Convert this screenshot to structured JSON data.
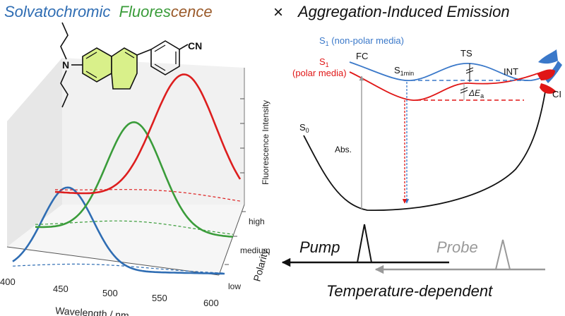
{
  "title": {
    "part1": "Solvatochromic",
    "part2_f": "F",
    "part2_rest": "luores",
    "part2_tail": "cence",
    "times": "×",
    "part3": "Aggregation-Induced Emission",
    "colors": {
      "blue": "#2f6db3",
      "green": "#3a9c3a",
      "brown": "#8a5a2b",
      "black": "#111111"
    }
  },
  "molecule": {
    "amine": "N",
    "nitrile": "CN",
    "ring_fill": "#d9f08a"
  },
  "plot3d": {
    "x_axis_title": "Wavelength / nm",
    "x_ticks": [
      "400",
      "450",
      "500",
      "550",
      "600"
    ],
    "z_axis_title": "Polarity",
    "z_ticks": [
      "high",
      "medium",
      "low"
    ],
    "y_axis_title": "Fluorescence Intensity"
  },
  "chart_data": {
    "type": "line",
    "title": "Solvatochromic Fluorescence",
    "xlabel": "Wavelength / nm",
    "ylabel": "Fluorescence Intensity",
    "zlabel": "Polarity",
    "xlim": [
      400,
      600
    ],
    "z_categories": [
      "low",
      "medium",
      "high"
    ],
    "series": [
      {
        "name": "low",
        "color": "#2f6db3",
        "peak_nm": 452,
        "width_nm": 24,
        "peak_rel": 0.62,
        "style": "solid"
      },
      {
        "name": "medium",
        "color": "#3a9c3a",
        "peak_nm": 500,
        "width_nm": 28,
        "peak_rel": 0.82,
        "style": "solid"
      },
      {
        "name": "high",
        "color": "#dd1e1e",
        "peak_nm": 540,
        "width_nm": 34,
        "peak_rel": 0.95,
        "style": "solid"
      },
      {
        "name": "low (aggregate)",
        "color": "#2f6db3",
        "peak_nm": 470,
        "width_nm": 60,
        "peak_rel": 0.05,
        "style": "dashed"
      },
      {
        "name": "medium (aggregate)",
        "color": "#3a9c3a",
        "peak_nm": 500,
        "width_nm": 60,
        "peak_rel": 0.08,
        "style": "dashed"
      },
      {
        "name": "high (aggregate)",
        "color": "#dd1e1e",
        "peak_nm": 520,
        "width_nm": 70,
        "peak_rel": 0.07,
        "style": "dashed"
      }
    ]
  },
  "energy": {
    "s1_nonpolar_label": "S",
    "s1_nonpolar_sub": "1",
    "s1_nonpolar_rest": " (non-polar media)",
    "s1_polar_label": "S",
    "s1_polar_sub": "1",
    "s1_polar_rest": "(polar media)",
    "fc": "FC",
    "ts": "TS",
    "s1min": "S",
    "s1min_sub": "1min",
    "int": "INT",
    "ci": "CI",
    "s0": "S",
    "s0_sub": "0",
    "abs": "Abs.",
    "delta_e": "ΔE",
    "delta_e_sub": "a",
    "colors": {
      "blue": "#3a78c9",
      "red": "#e01616",
      "black": "#111111"
    }
  },
  "pump_probe": {
    "pump": "Pump",
    "probe": "Probe",
    "caption": "Temperature-dependent"
  }
}
